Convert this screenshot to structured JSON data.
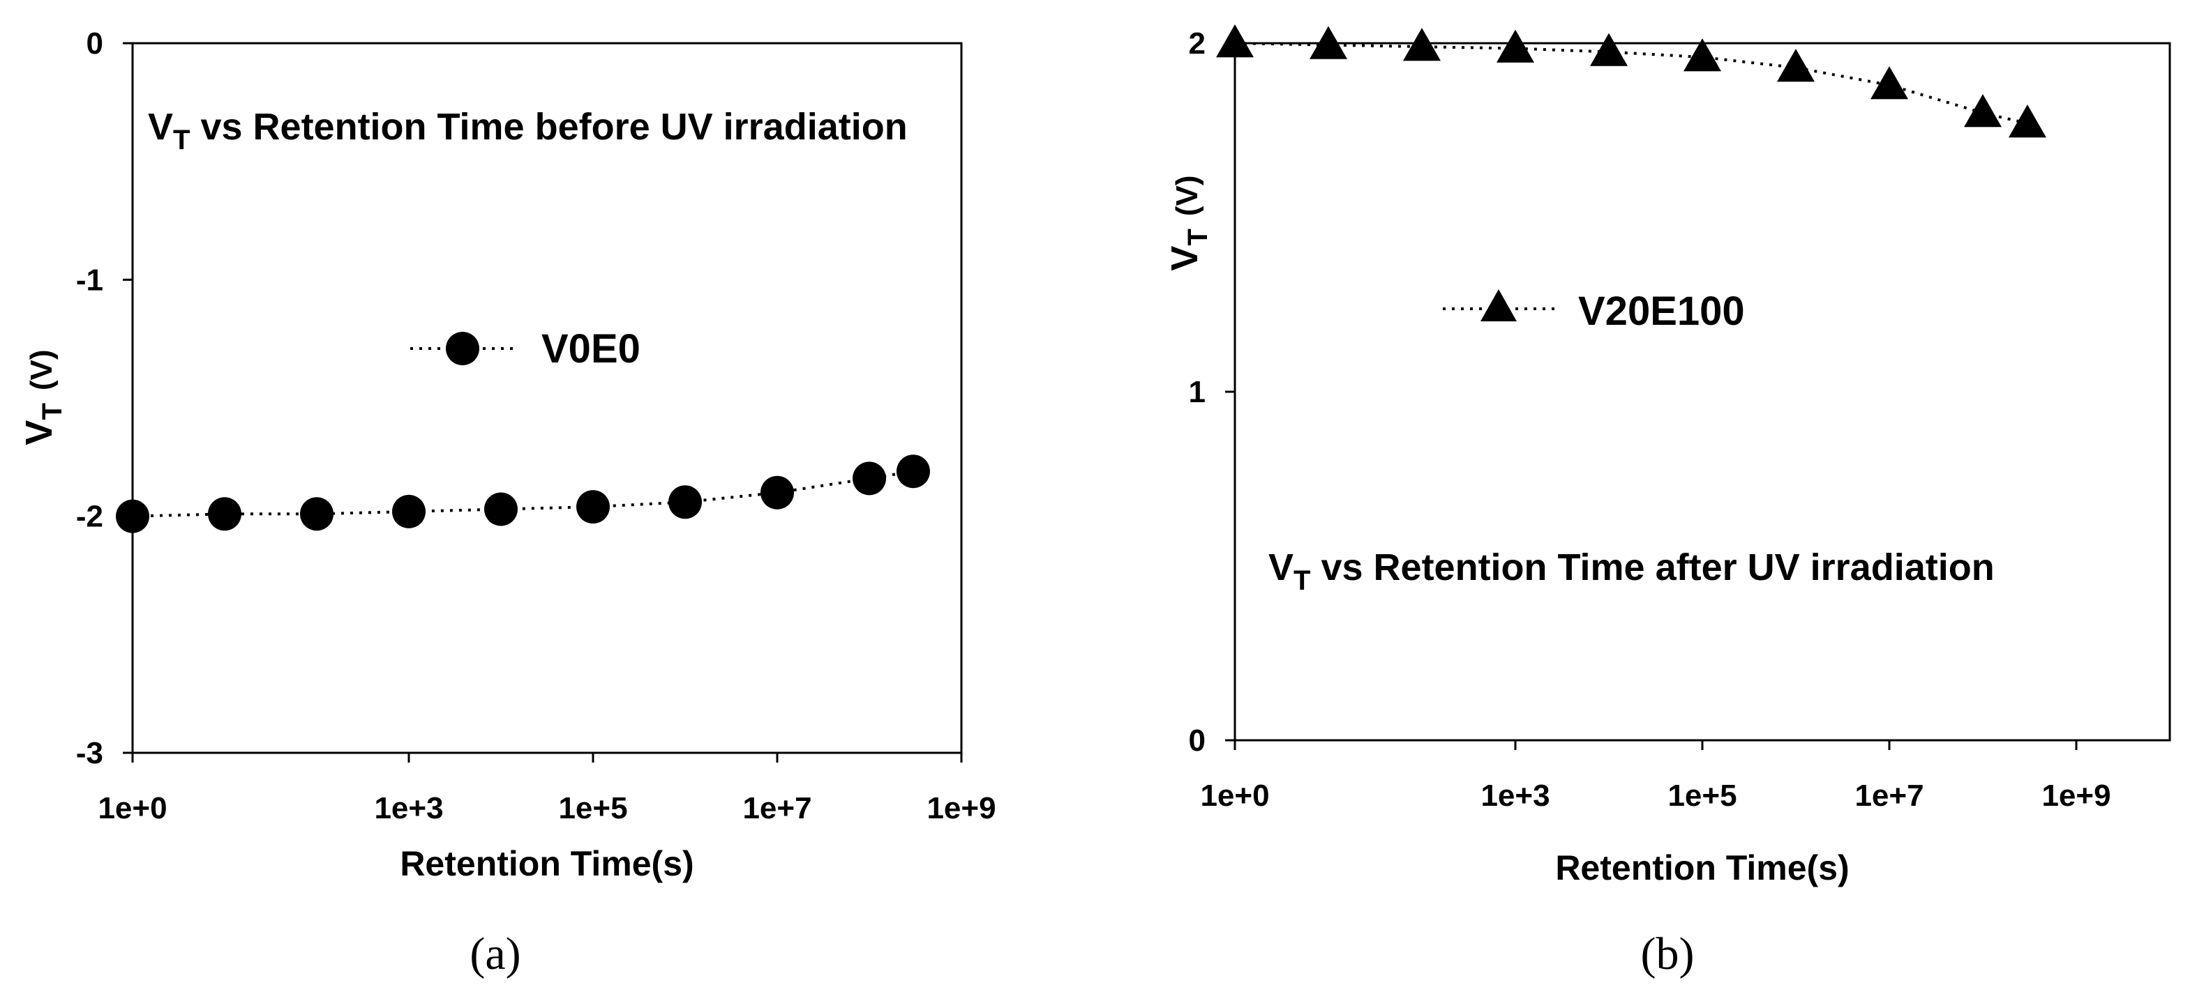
{
  "chart_data": [
    {
      "type": "scatter",
      "panel_label": "(a)",
      "title_main": "V",
      "title_sub": "T",
      "title_rest": " vs Retention Time before UV irradiation",
      "xlabel": "Retention Time(s)",
      "ylabel_main": "V",
      "ylabel_sub": "T",
      "ylabel_unit": "(V)",
      "x_scale": "log",
      "x_tick_labels": [
        "1e+0",
        "1e+3",
        "1e+5",
        "1e+7",
        "1e+9"
      ],
      "x_tick_values": [
        1,
        1000,
        100000,
        10000000,
        1000000000
      ],
      "y_tick_labels": [
        "0",
        "-1",
        "-2",
        "-3"
      ],
      "y_tick_values": [
        0,
        -1,
        -2,
        -3
      ],
      "xlim": [
        1,
        1000000000
      ],
      "ylim": [
        -3,
        0
      ],
      "legend_position": "center",
      "series": [
        {
          "name": "V0E0",
          "marker": "circle",
          "line": "dotted",
          "x": [
            1,
            10,
            100,
            1000,
            10000,
            100000,
            1000000,
            10000000,
            100000000,
            300000000
          ],
          "y": [
            -2.0,
            -1.99,
            -1.99,
            -1.98,
            -1.97,
            -1.96,
            -1.94,
            -1.9,
            -1.84,
            -1.81
          ]
        }
      ]
    },
    {
      "type": "scatter",
      "panel_label": "(b)",
      "title_main": "V",
      "title_sub": "T",
      "title_rest": " vs Retention Time after UV irradiation",
      "xlabel": "Retention Time(s)",
      "ylabel_main": "V",
      "ylabel_sub": "T",
      "ylabel_unit": "(V)",
      "x_scale": "log",
      "x_tick_labels": [
        "1e+0",
        "1e+3",
        "1e+5",
        "1e+7",
        "1e+9"
      ],
      "x_tick_values": [
        1,
        1000,
        100000,
        10000000,
        1000000000
      ],
      "y_tick_labels": [
        "2",
        "1",
        "0"
      ],
      "y_tick_values": [
        2,
        1,
        0
      ],
      "xlim": [
        1,
        10000000000
      ],
      "ylim": [
        0,
        2
      ],
      "legend_position": "upper-center",
      "series": [
        {
          "name": "V20E100",
          "marker": "triangle",
          "line": "dotted",
          "x": [
            1,
            10,
            100,
            1000,
            10000,
            100000,
            1000000,
            10000000,
            100000000,
            300000000
          ],
          "y": [
            2.0,
            1.995,
            1.99,
            1.985,
            1.975,
            1.96,
            1.93,
            1.88,
            1.8,
            1.77
          ]
        }
      ]
    }
  ]
}
